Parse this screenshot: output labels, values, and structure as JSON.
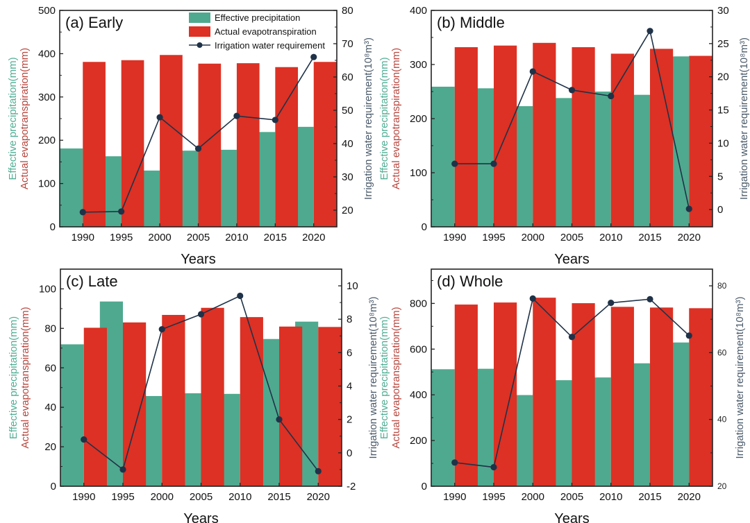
{
  "chart_data": [
    {
      "type": "bar",
      "id": "a",
      "title": "(a) Early",
      "categories": [
        "1990",
        "1995",
        "2000",
        "2005",
        "2010",
        "2015",
        "2020"
      ],
      "xlabel": "Years",
      "ylabel_left": [
        "Effective precipitation(mm)",
        "Actual evapotranspiration(mm)"
      ],
      "ylabel_right": "Irrigation water requirement(10⁸m³)",
      "ylim_left": [
        0,
        500
      ],
      "yticks_left": [
        0,
        100,
        200,
        300,
        400,
        500
      ],
      "ylim_right": [
        15,
        80
      ],
      "yticks_right": [
        20,
        30,
        40,
        50,
        60,
        70,
        80
      ],
      "grid": false,
      "legend": "top-right",
      "series": [
        {
          "name": "Effective precipitation",
          "kind": "bar",
          "axis": "left",
          "values": [
            181,
            163,
            130,
            176,
            178,
            219,
            231
          ]
        },
        {
          "name": "Actual evapotranspiration",
          "kind": "bar",
          "axis": "left",
          "values": [
            381,
            385,
            397,
            377,
            378,
            369,
            381
          ]
        },
        {
          "name": "Irrigation water requirement",
          "kind": "line",
          "axis": "right",
          "values": [
            19.4,
            19.6,
            47.9,
            38.5,
            48.3,
            47.1,
            66.0
          ]
        }
      ]
    },
    {
      "type": "bar",
      "id": "b",
      "title": "(b) Middle",
      "categories": [
        "1990",
        "1995",
        "2000",
        "2005",
        "2010",
        "2015",
        "2020"
      ],
      "xlabel": "Years",
      "ylabel_left": [
        "Effective precipitation(mm)",
        "Actual evapotranspiration(mm)"
      ],
      "ylabel_right": "Irrigation water requirement(10⁸m³)",
      "ylim_left": [
        0,
        400
      ],
      "yticks_left": [
        0,
        100,
        200,
        300,
        400
      ],
      "ylim_right": [
        -2.6,
        30
      ],
      "yticks_right": [
        0,
        5,
        10,
        15,
        20,
        25,
        30
      ],
      "grid": false,
      "legend": "none",
      "series": [
        {
          "name": "Effective precipitation",
          "kind": "bar",
          "axis": "left",
          "values": [
            259,
            256,
            223,
            238,
            250,
            244,
            315
          ]
        },
        {
          "name": "Actual evapotranspiration",
          "kind": "bar",
          "axis": "left",
          "values": [
            332,
            335,
            340,
            332,
            320,
            329,
            316
          ]
        },
        {
          "name": "Irrigation water requirement",
          "kind": "line",
          "axis": "right",
          "values": [
            6.9,
            6.9,
            20.8,
            18.0,
            17.1,
            26.9,
            0.1
          ]
        }
      ]
    },
    {
      "type": "bar",
      "id": "c",
      "title": "(c) Late",
      "categories": [
        "1990",
        "1995",
        "2000",
        "2005",
        "2010",
        "2015",
        "2020"
      ],
      "xlabel": "Years",
      "ylabel_left": [
        "Effective precipitation(mm)",
        "Actual evapotranspiration(mm)"
      ],
      "ylabel_right": "Irrigation water requirement(10⁸m³)",
      "ylim_left": [
        0,
        110
      ],
      "yticks_left": [
        0,
        20,
        40,
        60,
        80,
        100
      ],
      "ylim_right": [
        -2,
        11
      ],
      "yticks_right": [
        -2,
        0,
        2,
        4,
        6,
        8,
        10
      ],
      "grid": false,
      "legend": "none",
      "series": [
        {
          "name": "Effective precipitation",
          "kind": "bar",
          "axis": "left",
          "values": [
            71.9,
            93.6,
            45.7,
            47.1,
            46.8,
            74.6,
            83.4
          ]
        },
        {
          "name": "Actual evapotranspiration",
          "kind": "bar",
          "axis": "left",
          "values": [
            80.3,
            83.0,
            86.8,
            90.4,
            85.7,
            80.9,
            80.7
          ]
        },
        {
          "name": "Irrigation water requirement",
          "kind": "line",
          "axis": "right",
          "values": [
            0.8,
            -1.0,
            7.4,
            8.3,
            9.4,
            2.0,
            -1.1
          ]
        }
      ]
    },
    {
      "type": "bar",
      "id": "d",
      "title": "(d) Whole",
      "categories": [
        "1990",
        "1995",
        "2000",
        "2005",
        "2010",
        "2015",
        "2020"
      ],
      "xlabel": "Years",
      "ylabel_left": [
        "Effective precipitation(mm)",
        "Actual evapotranspiration(mm)"
      ],
      "ylabel_right": "Irrigation water requirement(10⁸m³)",
      "ylim_left": [
        0,
        950
      ],
      "yticks_left": [
        0,
        200,
        400,
        600,
        800
      ],
      "ylim_right": [
        20,
        85
      ],
      "yticks_right": [
        20,
        40,
        60,
        80
      ],
      "grid": false,
      "legend": "none",
      "series": [
        {
          "name": "Effective precipitation",
          "kind": "bar",
          "axis": "left",
          "values": [
            512,
            514,
            399,
            464,
            476,
            538,
            629
          ]
        },
        {
          "name": "Actual evapotranspiration",
          "kind": "bar",
          "axis": "left",
          "values": [
            795,
            804,
            825,
            801,
            785,
            782,
            779
          ]
        },
        {
          "name": "Irrigation water requirement",
          "kind": "line",
          "axis": "right",
          "values": [
            27.1,
            25.7,
            76.2,
            64.7,
            74.9,
            76.0,
            65.1
          ]
        }
      ]
    }
  ],
  "colors": {
    "effective_precipitation": "#4fa98e",
    "actual_evapotranspiration": "#dc3124",
    "irrigation_line": "#1f3248",
    "ylabel_precip": "#4fae93",
    "ylabel_et": "#b8463e",
    "ylabel_irrigation": "#4a5a6a"
  }
}
